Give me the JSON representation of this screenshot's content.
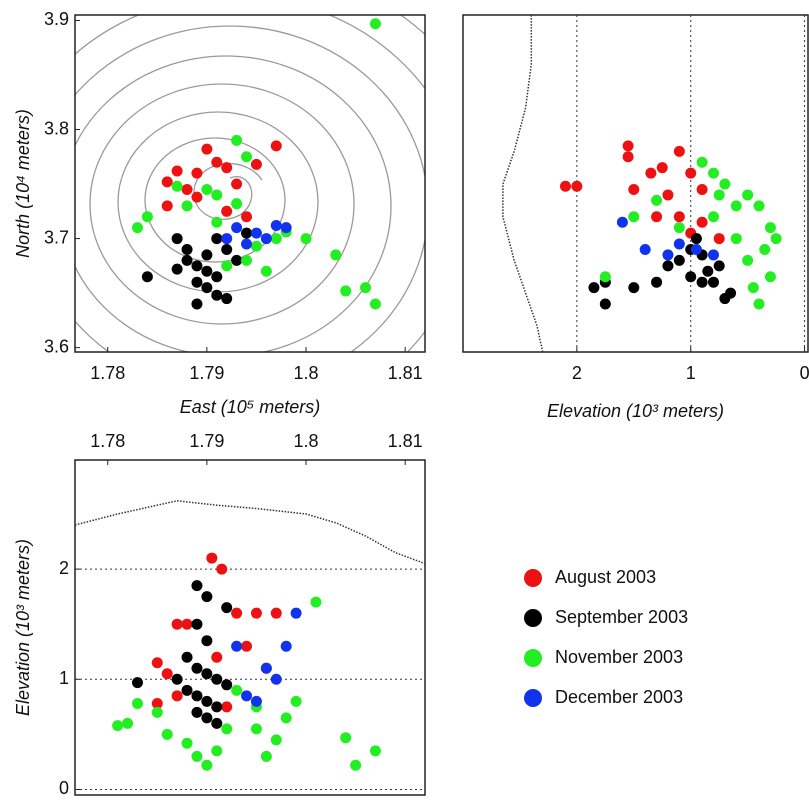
{
  "chart_data": [
    {
      "type": "scatter",
      "xlabel": "East (10⁵ meters)",
      "ylabel": "North (10⁴ meters)",
      "xlim": [
        1.7767,
        1.812
      ],
      "ylim": [
        3.596,
        3.905
      ],
      "xticks": [
        1.78,
        1.79,
        1.8,
        1.81
      ],
      "yticks": [
        3.6,
        3.7,
        3.8,
        3.9
      ],
      "series": [
        {
          "name": "August 2003",
          "color": "#ee1111",
          "x": [
            1.787,
            1.79,
            1.786,
            1.789,
            1.792,
            1.788,
            1.791,
            1.795,
            1.797,
            1.793,
            1.786,
            1.789,
            1.792,
            1.794
          ],
          "values": [
            3.762,
            3.782,
            3.752,
            3.76,
            3.765,
            3.745,
            3.77,
            3.768,
            3.785,
            3.75,
            3.73,
            3.738,
            3.725,
            3.72
          ]
        },
        {
          "name": "September 2003",
          "color": "#000000",
          "x": [
            1.784,
            1.787,
            1.788,
            1.789,
            1.79,
            1.791,
            1.789,
            1.79,
            1.791,
            1.789,
            1.792,
            1.788,
            1.791,
            1.793,
            1.792,
            1.79,
            1.787,
            1.794
          ],
          "values": [
            3.665,
            3.7,
            3.68,
            3.675,
            3.67,
            3.665,
            3.66,
            3.655,
            3.648,
            3.64,
            3.645,
            3.69,
            3.7,
            3.68,
            3.69,
            3.685,
            3.672,
            3.705
          ]
        },
        {
          "name": "November 2003",
          "color": "#22ee22",
          "x": [
            1.807,
            1.783,
            1.784,
            1.787,
            1.791,
            1.794,
            1.793,
            1.795,
            1.797,
            1.798,
            1.8,
            1.803,
            1.806,
            1.804,
            1.807,
            1.792,
            1.794,
            1.796,
            1.79,
            1.788,
            1.793,
            1.791
          ],
          "values": [
            3.897,
            3.71,
            3.72,
            3.748,
            3.74,
            3.775,
            3.79,
            3.693,
            3.7,
            3.706,
            3.7,
            3.685,
            3.655,
            3.652,
            3.64,
            3.675,
            3.68,
            3.67,
            3.745,
            3.73,
            3.732,
            3.715
          ]
        },
        {
          "name": "December 2003",
          "color": "#1133ee",
          "x": [
            1.793,
            1.795,
            1.796,
            1.797,
            1.798,
            1.794,
            1.792
          ],
          "values": [
            3.71,
            3.705,
            3.7,
            3.712,
            3.71,
            3.695,
            3.7
          ]
        }
      ]
    },
    {
      "type": "scatter",
      "xlabel": "Elevation (10³ meters)",
      "grid": "x",
      "xlim": [
        3.0,
        -0.03
      ],
      "ylim": [
        3.596,
        3.905
      ],
      "xticks": [
        2,
        1,
        0
      ],
      "profile": {
        "x": [
          2.3,
          2.35,
          2.45,
          2.55,
          2.65,
          2.65,
          2.55,
          2.45,
          2.4,
          2.4
        ],
        "values": [
          3.596,
          3.62,
          3.65,
          3.68,
          3.72,
          3.75,
          3.78,
          3.82,
          3.86,
          3.905
        ]
      },
      "series": [
        {
          "color": "#ee1111",
          "x": [
            2.1,
            2.0,
            1.55,
            1.55,
            1.35,
            1.25,
            1.1,
            1.0,
            0.9,
            1.2,
            1.3,
            1.5,
            1.0,
            0.9,
            0.75,
            1.1
          ],
          "values": [
            3.748,
            3.748,
            3.785,
            3.775,
            3.76,
            3.765,
            3.78,
            3.76,
            3.745,
            3.74,
            3.72,
            3.745,
            3.705,
            3.715,
            3.7,
            3.72
          ]
        },
        {
          "color": "#000000",
          "x": [
            1.85,
            1.75,
            1.75,
            1.5,
            1.3,
            1.1,
            1.0,
            0.95,
            0.9,
            0.85,
            0.8,
            0.7,
            0.65,
            1.2,
            1.0,
            0.9,
            0.75
          ],
          "values": [
            3.655,
            3.64,
            3.66,
            3.655,
            3.66,
            3.68,
            3.69,
            3.7,
            3.685,
            3.67,
            3.66,
            3.645,
            3.65,
            3.675,
            3.665,
            3.66,
            3.675
          ]
        },
        {
          "color": "#22ee22",
          "x": [
            1.75,
            1.5,
            1.3,
            0.9,
            0.8,
            0.7,
            0.5,
            0.4,
            0.3,
            0.25,
            0.35,
            0.5,
            0.6,
            0.8,
            0.6,
            0.45,
            0.4,
            0.3,
            1.1,
            0.75
          ],
          "values": [
            3.665,
            3.72,
            3.735,
            3.77,
            3.76,
            3.75,
            3.74,
            3.73,
            3.71,
            3.7,
            3.69,
            3.68,
            3.7,
            3.72,
            3.73,
            3.655,
            3.64,
            3.665,
            3.71,
            3.74
          ]
        },
        {
          "color": "#1133ee",
          "x": [
            1.6,
            1.4,
            1.2,
            1.1,
            0.95,
            0.8
          ],
          "values": [
            3.715,
            3.69,
            3.685,
            3.695,
            3.69,
            3.685
          ]
        }
      ]
    },
    {
      "type": "scatter",
      "ylabel": "Elevation (10³ meters)",
      "grid": "y",
      "xaxis_position": "top",
      "xlim": [
        1.7767,
        1.812
      ],
      "ylim": [
        -0.05,
        2.99
      ],
      "xticks": [
        1.78,
        1.79,
        1.8,
        1.81
      ],
      "yticks": [
        0,
        1,
        2
      ],
      "profile": {
        "x": [
          1.7767,
          1.781,
          1.787,
          1.791,
          1.795,
          1.8,
          1.803,
          1.806,
          1.809,
          1.812
        ],
        "values": [
          2.4,
          2.5,
          2.62,
          2.58,
          2.55,
          2.5,
          2.42,
          2.3,
          2.15,
          2.05
        ]
      },
      "series": [
        {
          "color": "#ee1111",
          "x": [
            1.7905,
            1.7915,
            1.787,
            1.788,
            1.793,
            1.795,
            1.797,
            1.785,
            1.786,
            1.787,
            1.785,
            1.794,
            1.796,
            1.791,
            1.792
          ],
          "values": [
            2.1,
            2.0,
            1.5,
            1.5,
            1.6,
            1.6,
            1.6,
            1.15,
            1.05,
            0.85,
            0.78,
            1.3,
            1.1,
            1.2,
            0.75
          ]
        },
        {
          "color": "#000000",
          "x": [
            1.789,
            1.79,
            1.792,
            1.789,
            1.79,
            1.788,
            1.789,
            1.79,
            1.791,
            1.783,
            1.788,
            1.789,
            1.79,
            1.791,
            1.789,
            1.79,
            1.791,
            1.787,
            1.792
          ],
          "values": [
            1.85,
            1.75,
            1.65,
            1.5,
            1.35,
            1.2,
            1.1,
            1.05,
            1.0,
            0.97,
            0.9,
            0.85,
            0.8,
            0.75,
            0.7,
            0.65,
            0.6,
            1.0,
            0.95
          ]
        },
        {
          "color": "#22ee22",
          "x": [
            1.801,
            1.781,
            1.782,
            1.783,
            1.785,
            1.786,
            1.788,
            1.789,
            1.79,
            1.791,
            1.793,
            1.795,
            1.796,
            1.797,
            1.798,
            1.799,
            1.804,
            1.805,
            1.807,
            1.795,
            1.792
          ],
          "values": [
            1.7,
            0.58,
            0.6,
            0.78,
            0.7,
            0.5,
            0.42,
            0.3,
            0.22,
            0.35,
            0.9,
            0.55,
            0.3,
            0.45,
            0.65,
            0.8,
            0.47,
            0.22,
            0.35,
            0.75,
            0.55
          ]
        },
        {
          "color": "#1133ee",
          "x": [
            1.793,
            1.794,
            1.795,
            1.796,
            1.797,
            1.798,
            1.799
          ],
          "values": [
            1.3,
            0.85,
            0.8,
            1.1,
            1.0,
            1.3,
            1.6
          ]
        }
      ]
    }
  ]
}
